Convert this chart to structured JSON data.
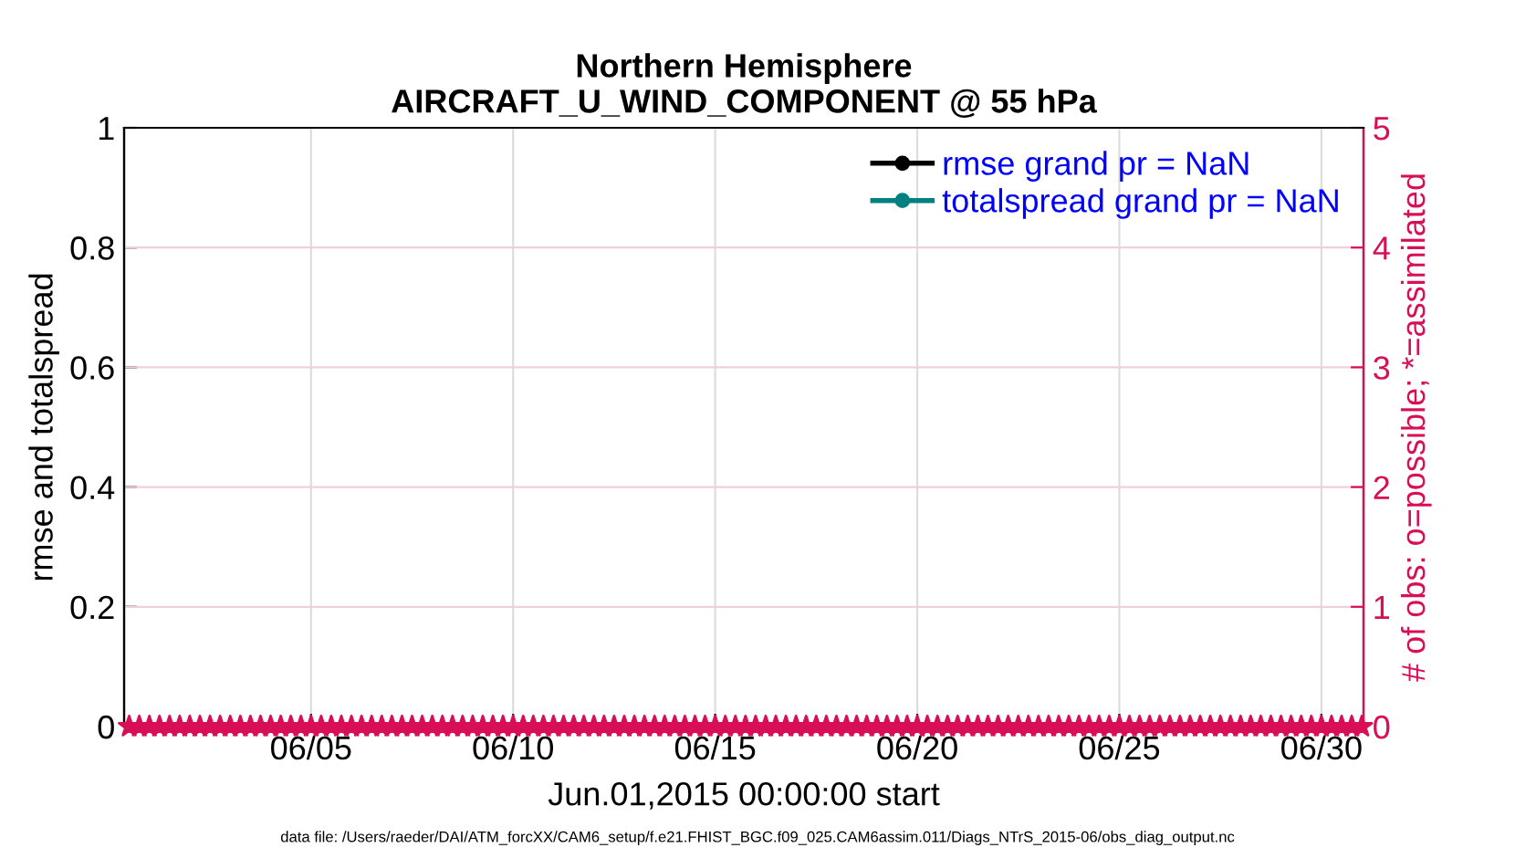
{
  "chart_data": {
    "type": "line",
    "title": "Northern Hemisphere\nAIRCRAFT_U_WIND_COMPONENT @ 55 hPa",
    "xlabel": "Jun.01,2015 00:00:00 start",
    "ylabel": "rmse and totalspread",
    "y2label": "# of obs: o=possible; *=assimilated",
    "annotations": [
      "data file: /Users/raeder/DAI/ATM_forcXX/CAM6_setup/f.e21.FHIST_BGC.f09_025.CAM6assim.011/Diags_NTrS_2015-06/obs_diag_output.nc"
    ],
    "x": [
      "2015-05-31T12:00",
      "2015-05-31T18:00",
      "2015-06-01T00:00",
      "2015-06-01T06:00",
      "2015-06-01T12:00",
      "2015-06-01T18:00",
      "2015-06-02T00:00",
      "2015-06-02T06:00",
      "2015-06-02T12:00",
      "2015-06-02T18:00",
      "2015-06-03T00:00",
      "2015-06-03T06:00",
      "2015-06-03T12:00",
      "2015-06-03T18:00",
      "2015-06-04T00:00",
      "2015-06-04T06:00",
      "2015-06-04T12:00",
      "2015-06-04T18:00",
      "2015-06-05T00:00",
      "2015-06-05T06:00",
      "2015-06-05T12:00",
      "2015-06-05T18:00",
      "2015-06-06T00:00",
      "2015-06-06T06:00",
      "2015-06-06T12:00",
      "2015-06-06T18:00",
      "2015-06-07T00:00",
      "2015-06-07T06:00",
      "2015-06-07T12:00",
      "2015-06-07T18:00",
      "2015-06-08T00:00",
      "2015-06-08T06:00",
      "2015-06-08T12:00",
      "2015-06-08T18:00",
      "2015-06-09T00:00",
      "2015-06-09T06:00",
      "2015-06-09T12:00",
      "2015-06-09T18:00",
      "2015-06-10T00:00",
      "2015-06-10T06:00",
      "2015-06-10T12:00",
      "2015-06-10T18:00",
      "2015-06-11T00:00",
      "2015-06-11T06:00",
      "2015-06-11T12:00",
      "2015-06-11T18:00",
      "2015-06-12T00:00",
      "2015-06-12T06:00",
      "2015-06-12T12:00",
      "2015-06-12T18:00",
      "2015-06-13T00:00",
      "2015-06-13T06:00",
      "2015-06-13T12:00",
      "2015-06-13T18:00",
      "2015-06-14T00:00",
      "2015-06-14T06:00",
      "2015-06-14T12:00",
      "2015-06-14T18:00",
      "2015-06-15T00:00",
      "2015-06-15T06:00",
      "2015-06-15T12:00",
      "2015-06-15T18:00",
      "2015-06-16T00:00",
      "2015-06-16T06:00",
      "2015-06-16T12:00",
      "2015-06-16T18:00",
      "2015-06-17T00:00",
      "2015-06-17T06:00",
      "2015-06-17T12:00",
      "2015-06-17T18:00",
      "2015-06-18T00:00",
      "2015-06-18T06:00",
      "2015-06-18T12:00",
      "2015-06-18T18:00",
      "2015-06-19T00:00",
      "2015-06-19T06:00",
      "2015-06-19T12:00",
      "2015-06-19T18:00",
      "2015-06-20T00:00",
      "2015-06-20T06:00",
      "2015-06-20T12:00",
      "2015-06-20T18:00",
      "2015-06-21T00:00",
      "2015-06-21T06:00",
      "2015-06-21T12:00",
      "2015-06-21T18:00",
      "2015-06-22T00:00",
      "2015-06-22T06:00",
      "2015-06-22T12:00",
      "2015-06-22T18:00",
      "2015-06-23T00:00",
      "2015-06-23T06:00",
      "2015-06-23T12:00",
      "2015-06-23T18:00",
      "2015-06-24T00:00",
      "2015-06-24T06:00",
      "2015-06-24T12:00",
      "2015-06-24T18:00",
      "2015-06-25T00:00",
      "2015-06-25T06:00",
      "2015-06-25T12:00",
      "2015-06-25T18:00",
      "2015-06-26T00:00",
      "2015-06-26T06:00",
      "2015-06-26T12:00",
      "2015-06-26T18:00",
      "2015-06-27T00:00",
      "2015-06-27T06:00",
      "2015-06-27T12:00",
      "2015-06-27T18:00",
      "2015-06-28T00:00",
      "2015-06-28T06:00",
      "2015-06-28T12:00",
      "2015-06-28T18:00",
      "2015-06-29T00:00",
      "2015-06-29T06:00",
      "2015-06-29T12:00",
      "2015-06-29T18:00",
      "2015-06-30T00:00",
      "2015-06-30T06:00",
      "2015-06-30T12:00",
      "2015-06-30T18:00",
      "2015-07-01T00:00"
    ],
    "series": [
      {
        "name": "rmse grand pr = NaN",
        "color": "#000000",
        "marker": "circle",
        "values": [
          null,
          null,
          null,
          null,
          null,
          null,
          null,
          null,
          null,
          null,
          null,
          null,
          null,
          null,
          null,
          null,
          null,
          null,
          null,
          null,
          null,
          null,
          null,
          null,
          null,
          null,
          null,
          null,
          null,
          null,
          null,
          null,
          null,
          null,
          null,
          null,
          null,
          null,
          null,
          null,
          null,
          null,
          null,
          null,
          null,
          null,
          null,
          null,
          null,
          null,
          null,
          null,
          null,
          null,
          null,
          null,
          null,
          null,
          null,
          null,
          null,
          null,
          null,
          null,
          null,
          null,
          null,
          null,
          null,
          null,
          null,
          null,
          null,
          null,
          null,
          null,
          null,
          null,
          null,
          null,
          null,
          null,
          null,
          null,
          null,
          null,
          null,
          null,
          null,
          null,
          null,
          null,
          null,
          null,
          null,
          null,
          null,
          null,
          null,
          null,
          null,
          null,
          null,
          null,
          null,
          null,
          null,
          null,
          null,
          null,
          null,
          null,
          null,
          null,
          null,
          null,
          null,
          null,
          null,
          null,
          null,
          null,
          null
        ]
      },
      {
        "name": "totalspread grand pr = NaN",
        "color": "#00807f",
        "marker": "circle",
        "values": [
          null,
          null,
          null,
          null,
          null,
          null,
          null,
          null,
          null,
          null,
          null,
          null,
          null,
          null,
          null,
          null,
          null,
          null,
          null,
          null,
          null,
          null,
          null,
          null,
          null,
          null,
          null,
          null,
          null,
          null,
          null,
          null,
          null,
          null,
          null,
          null,
          null,
          null,
          null,
          null,
          null,
          null,
          null,
          null,
          null,
          null,
          null,
          null,
          null,
          null,
          null,
          null,
          null,
          null,
          null,
          null,
          null,
          null,
          null,
          null,
          null,
          null,
          null,
          null,
          null,
          null,
          null,
          null,
          null,
          null,
          null,
          null,
          null,
          null,
          null,
          null,
          null,
          null,
          null,
          null,
          null,
          null,
          null,
          null,
          null,
          null,
          null,
          null,
          null,
          null,
          null,
          null,
          null,
          null,
          null,
          null,
          null,
          null,
          null,
          null,
          null,
          null,
          null,
          null,
          null,
          null,
          null,
          null,
          null,
          null,
          null,
          null,
          null,
          null,
          null,
          null,
          null,
          null,
          null,
          null,
          null,
          null,
          null
        ]
      },
      {
        "type": "scatter",
        "axis": "y2",
        "color": "#d80f56",
        "marker": "star",
        "values": [
          0,
          0,
          0,
          0,
          0,
          0,
          0,
          0,
          0,
          0,
          0,
          0,
          0,
          0,
          0,
          0,
          0,
          0,
          0,
          0,
          0,
          0,
          0,
          0,
          0,
          0,
          0,
          0,
          0,
          0,
          0,
          0,
          0,
          0,
          0,
          0,
          0,
          0,
          0,
          0,
          0,
          0,
          0,
          0,
          0,
          0,
          0,
          0,
          0,
          0,
          0,
          0,
          0,
          0,
          0,
          0,
          0,
          0,
          0,
          0,
          0,
          0,
          0,
          0,
          0,
          0,
          0,
          0,
          0,
          0,
          0,
          0,
          0,
          0,
          0,
          0,
          0,
          0,
          0,
          0,
          0,
          0,
          0,
          0,
          0,
          0,
          0,
          0,
          0,
          0,
          0,
          0,
          0,
          0,
          0,
          0,
          0,
          0,
          0,
          0,
          0,
          0,
          0,
          0,
          0,
          0,
          0,
          0,
          0,
          0,
          0,
          0,
          0,
          0,
          0,
          0,
          0,
          0,
          0,
          0,
          0,
          0,
          0
        ]
      }
    ],
    "xlim": [
      "2015-05-31T09:00",
      "2015-07-01T01:00"
    ],
    "xticks": [
      {
        "value": "2015-06-05",
        "label": "06/05"
      },
      {
        "value": "2015-06-10",
        "label": "06/10"
      },
      {
        "value": "2015-06-15",
        "label": "06/15"
      },
      {
        "value": "2015-06-20",
        "label": "06/20"
      },
      {
        "value": "2015-06-25",
        "label": "06/25"
      },
      {
        "value": "2015-06-30",
        "label": "06/30"
      }
    ],
    "ylim": [
      0,
      1
    ],
    "yticks": [
      0,
      0.2,
      0.4,
      0.6,
      0.8,
      1
    ],
    "y2lim": [
      0,
      5
    ],
    "y2ticks": [
      0,
      1,
      2,
      3,
      4,
      5
    ],
    "grid": true,
    "legend": "top right"
  }
}
